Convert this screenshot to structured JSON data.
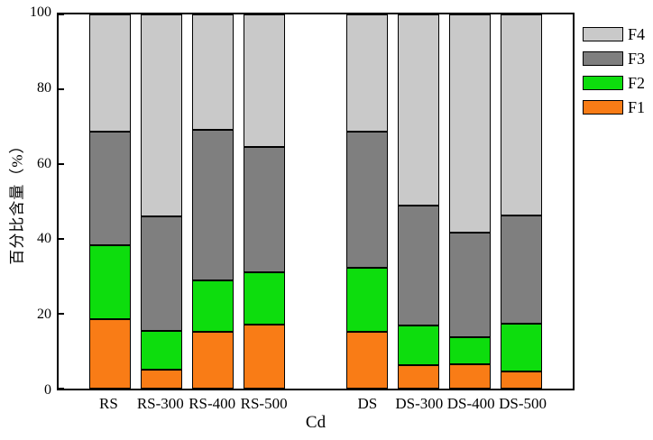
{
  "figure": {
    "y_axis_label": "百分比含量（%）",
    "x_axis_label": "Cd"
  },
  "legend": {
    "entries": [
      {
        "label": "F4",
        "color": "#c9c9c9"
      },
      {
        "label": "F3",
        "color": "#7f7f7f"
      },
      {
        "label": "F2",
        "color": "#0ddd0d"
      },
      {
        "label": "F1",
        "color": "#f97c16"
      }
    ]
  },
  "chart_data": {
    "type": "bar",
    "stacked": true,
    "title": "",
    "xlabel": "Cd",
    "ylabel": "百分比含量（%）",
    "ylim": [
      0,
      100
    ],
    "y_ticks": [
      0,
      20,
      40,
      60,
      80,
      100
    ],
    "grid": false,
    "legend_position": "outside-upper-right",
    "legend_order": [
      "F4",
      "F3",
      "F2",
      "F1"
    ],
    "categories": [
      "RS",
      "RS-300",
      "RS-400",
      "RS-500",
      "DS",
      "DS-300",
      "DS-400",
      "DS-500"
    ],
    "x_positions": [
      1,
      2,
      3,
      4,
      6,
      7,
      8,
      9
    ],
    "xlim": [
      0,
      10
    ],
    "bar_width": 0.8,
    "series": [
      {
        "name": "F1",
        "color": "#f97c16",
        "values": [
          18.5,
          5.0,
          15.2,
          17.0,
          15.3,
          6.2,
          6.6,
          4.6
        ]
      },
      {
        "name": "F2",
        "color": "#0ddd0d",
        "values": [
          19.8,
          10.5,
          13.6,
          14.0,
          17.0,
          10.7,
          7.2,
          12.7
        ]
      },
      {
        "name": "F3",
        "color": "#7f7f7f",
        "values": [
          30.4,
          30.5,
          40.4,
          33.5,
          36.4,
          32.0,
          28.0,
          28.9
        ]
      },
      {
        "name": "F4",
        "color": "#c9c9c9",
        "values": [
          31.3,
          54.0,
          30.8,
          35.5,
          31.3,
          51.1,
          58.2,
          53.8
        ]
      }
    ]
  }
}
